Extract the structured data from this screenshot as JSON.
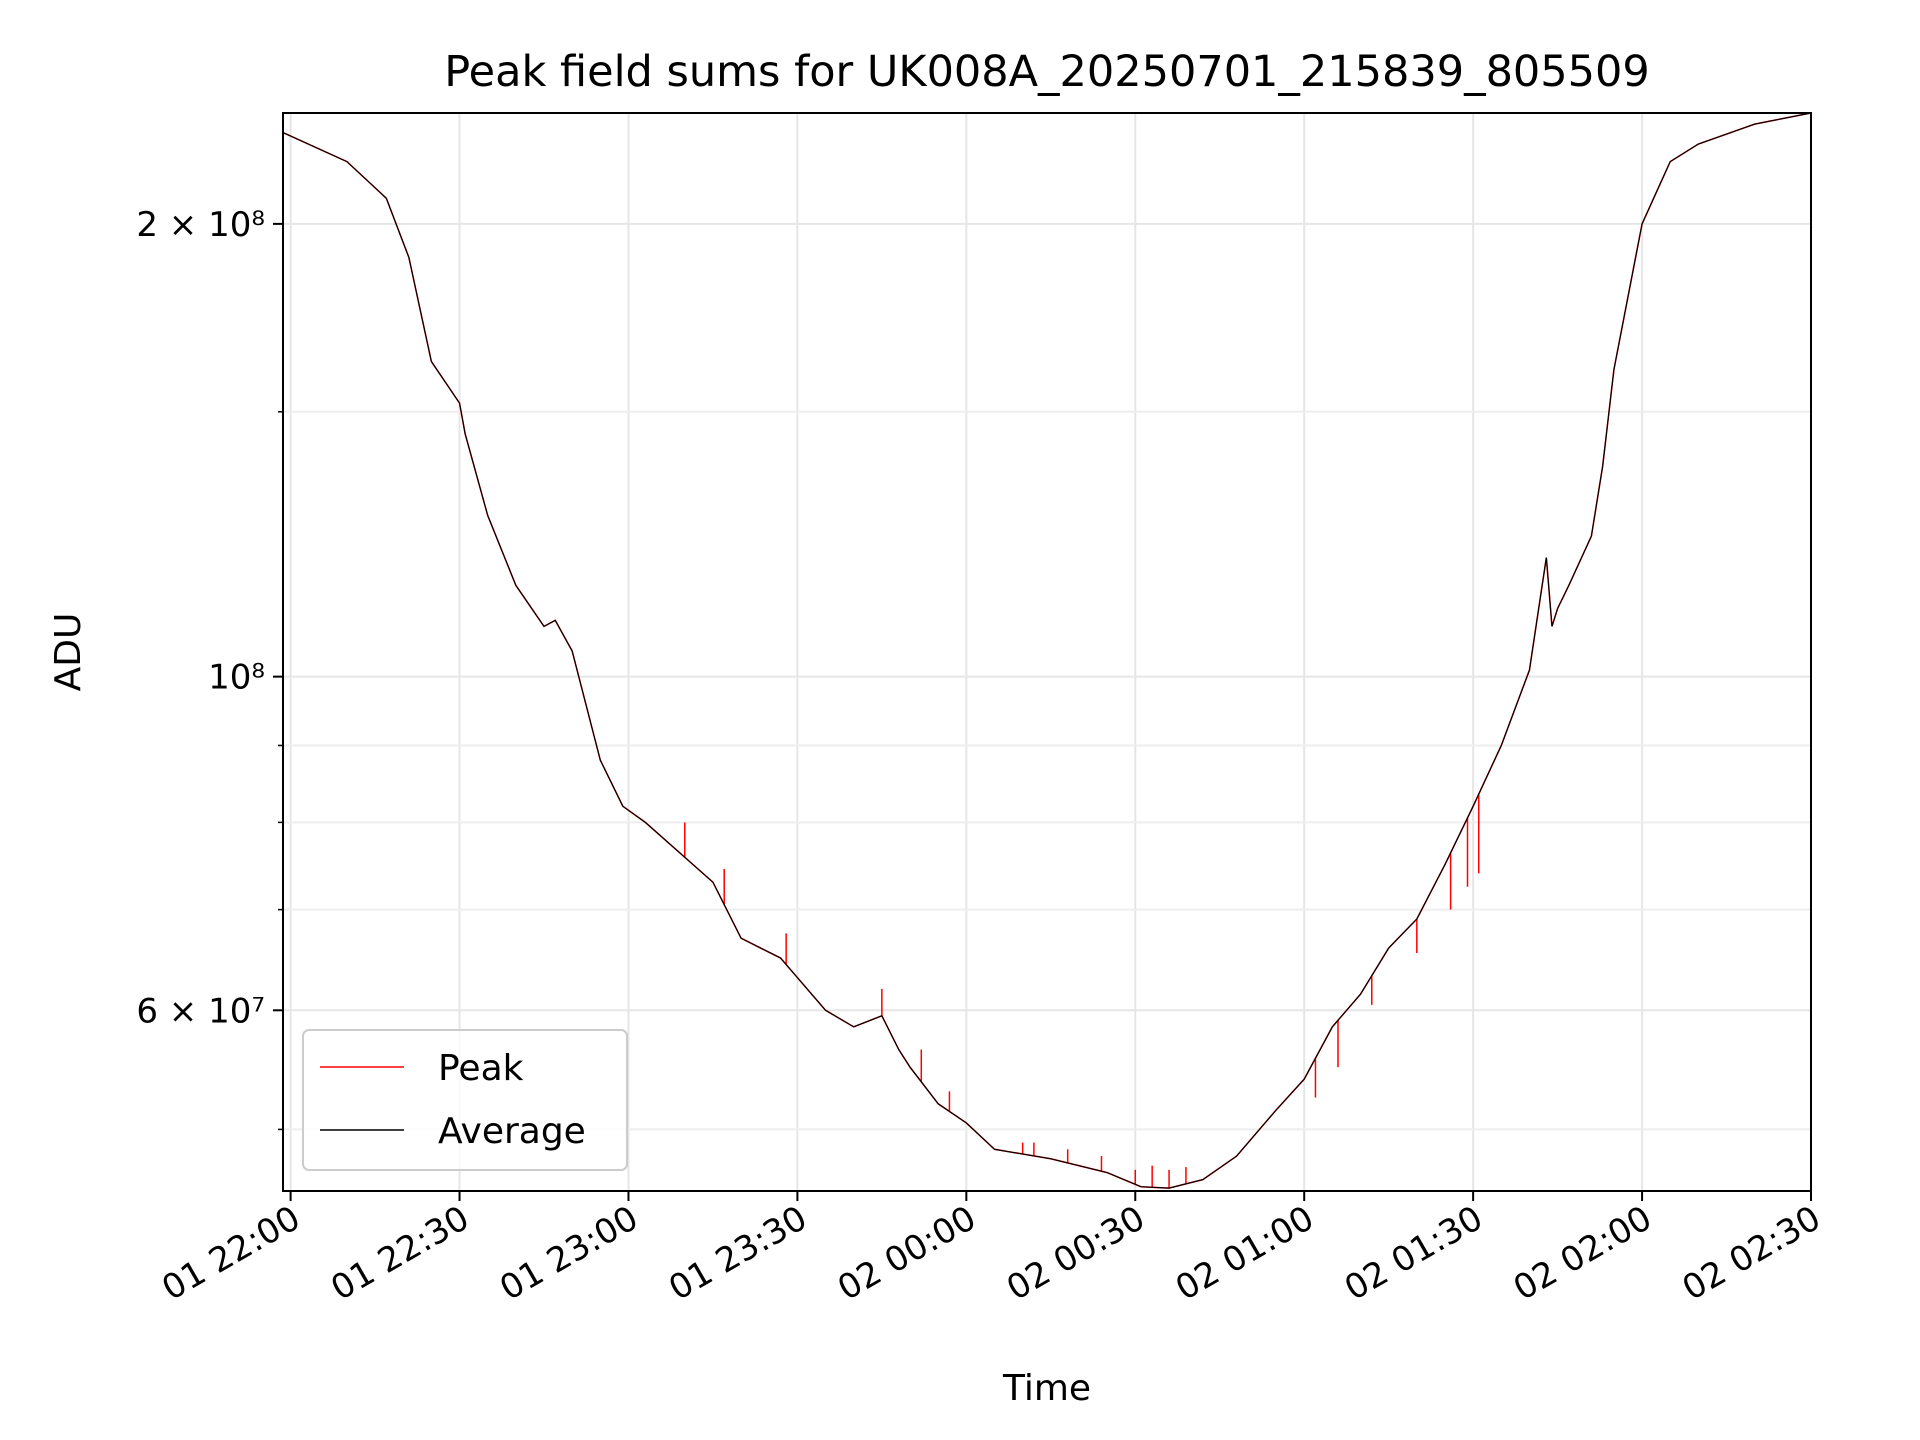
{
  "chart_data": {
    "type": "line",
    "title": "Peak field sums for UK008A_20250701_215839_805509",
    "xlabel": "Time",
    "ylabel": "ADU",
    "yscale": "log",
    "ylim": [
      45500000,
      237000000
    ],
    "xlim": [
      "2025-07-01 21:58:39",
      "2025-07-02 02:30:00"
    ],
    "grid": true,
    "legend_placement": "lower-left",
    "x_ticks": [
      "01 22:00",
      "01 22:30",
      "01 23:00",
      "01 23:30",
      "02 00:00",
      "02 00:30",
      "02 01:00",
      "02 01:30",
      "02 02:00",
      "02 02:30"
    ],
    "y_ticks": [
      "2 × 10⁸",
      "10⁸",
      "6 × 10⁷"
    ],
    "colors": {
      "Peak": "#ff0000",
      "Average": "#000000"
    },
    "series": [
      {
        "name": "Average",
        "x": [
          "01 21:58:39",
          "01 22:10",
          "01 22:17",
          "01 22:21",
          "01 22:25",
          "01 22:30",
          "01 22:31",
          "01 22:35",
          "01 22:40",
          "01 22:45",
          "01 22:47",
          "01 22:50",
          "01 22:55",
          "01 22:59",
          "01 23:03",
          "01 23:08",
          "01 23:15",
          "01 23:20",
          "01 23:27",
          "01 23:35",
          "01 23:40",
          "01 23:45",
          "01 23:48",
          "01 23:50",
          "01 23:55",
          "02 00:00",
          "02 00:05",
          "02 00:15",
          "02 00:25",
          "02 00:31",
          "02 00:36",
          "02 00:42",
          "02 00:48",
          "02 00:55",
          "02 01:00",
          "02 01:05",
          "02 01:10",
          "02 01:15",
          "02 01:20",
          "02 01:25",
          "02 01:30",
          "02 01:35",
          "02 01:40",
          "02 01:43",
          "02 01:44",
          "02 01:45",
          "02 01:47",
          "02 01:51",
          "02 01:53",
          "02 01:55",
          "02 02:00",
          "02 02:05",
          "02 02:10",
          "02 02:20",
          "02 02:30"
        ],
        "y": [
          230000000,
          220000000,
          208000000,
          190000000,
          162000000,
          152000000,
          145000000,
          128000000,
          115000000,
          108000000,
          109000000,
          104000000,
          88000000,
          82000000,
          80000000,
          77000000,
          73000000,
          67000000,
          65000000,
          60000000,
          58500000,
          59500000,
          56500000,
          55000000,
          52000000,
          50500000,
          48500000,
          47800000,
          46800000,
          45800000,
          45700000,
          46300000,
          48000000,
          51500000,
          54000000,
          58500000,
          61500000,
          66000000,
          69000000,
          75000000,
          82000000,
          90000000,
          101000000,
          120000000,
          108000000,
          111000000,
          115000000,
          124000000,
          138000000,
          160000000,
          200000000,
          220000000,
          226000000,
          233000000,
          237000000
        ]
      },
      {
        "name": "Peak",
        "x": [
          "01 21:58:39",
          "01 22:10",
          "01 22:17",
          "01 22:21",
          "01 22:25",
          "01 22:30",
          "01 22:31",
          "01 22:35",
          "01 22:40",
          "01 22:45",
          "01 22:47",
          "01 22:50",
          "01 22:55",
          "01 22:59",
          "01 23:03",
          "01 23:08",
          "01 23:15",
          "01 23:20",
          "01 23:27",
          "01 23:35",
          "01 23:40",
          "01 23:45",
          "01 23:48",
          "01 23:50",
          "01 23:55",
          "02 00:00",
          "02 00:05",
          "02 00:15",
          "02 00:25",
          "02 00:31",
          "02 00:36",
          "02 00:42",
          "02 00:48",
          "02 00:55",
          "02 01:00",
          "02 01:05",
          "02 01:10",
          "02 01:15",
          "02 01:20",
          "02 01:25",
          "02 01:30",
          "02 01:35",
          "02 01:40",
          "02 01:43",
          "02 01:44",
          "02 01:45",
          "02 01:47",
          "02 01:51",
          "02 01:53",
          "02 01:55",
          "02 02:00",
          "02 02:05",
          "02 02:10",
          "02 02:20",
          "02 02:30"
        ],
        "y": [
          230000000,
          220000000,
          208000000,
          190000000,
          162000000,
          152000000,
          145000000,
          128000000,
          115000000,
          108000000,
          109000000,
          104000000,
          88000000,
          82000000,
          80000000,
          77000000,
          73000000,
          67000000,
          65000000,
          60000000,
          58500000,
          59500000,
          56500000,
          55000000,
          52000000,
          50500000,
          48500000,
          47800000,
          46800000,
          45800000,
          45700000,
          46300000,
          48000000,
          51500000,
          54000000,
          58500000,
          61500000,
          66000000,
          69000000,
          75000000,
          82000000,
          90000000,
          101000000,
          120000000,
          108000000,
          111000000,
          115000000,
          124000000,
          138000000,
          160000000,
          200000000,
          220000000,
          226000000,
          233000000,
          237000000
        ],
        "spikes": [
          {
            "x": "01 23:10",
            "y": 80000000
          },
          {
            "x": "01 23:17",
            "y": 74500000
          },
          {
            "x": "01 23:28",
            "y": 67500000
          },
          {
            "x": "01 23:45",
            "y": 62000000
          },
          {
            "x": "01 23:52",
            "y": 56500000
          },
          {
            "x": "01 23:57",
            "y": 53000000
          },
          {
            "x": "02 00:10",
            "y": 49000000
          },
          {
            "x": "02 00:12",
            "y": 49000000
          },
          {
            "x": "02 00:18",
            "y": 48500000
          },
          {
            "x": "02 00:24",
            "y": 48000000
          },
          {
            "x": "02 00:30",
            "y": 47000000
          },
          {
            "x": "02 00:33",
            "y": 47300000
          },
          {
            "x": "02 00:36",
            "y": 47000000
          },
          {
            "x": "02 00:39",
            "y": 47200000
          },
          {
            "x": "02 01:02",
            "y": 52500000
          },
          {
            "x": "02 01:06",
            "y": 55000000
          },
          {
            "x": "02 01:12",
            "y": 60500000
          },
          {
            "x": "02 01:20",
            "y": 65500000
          },
          {
            "x": "02 01:26",
            "y": 70000000
          },
          {
            "x": "02 01:29",
            "y": 72500000
          },
          {
            "x": "02 01:31",
            "y": 74000000
          }
        ]
      }
    ]
  }
}
